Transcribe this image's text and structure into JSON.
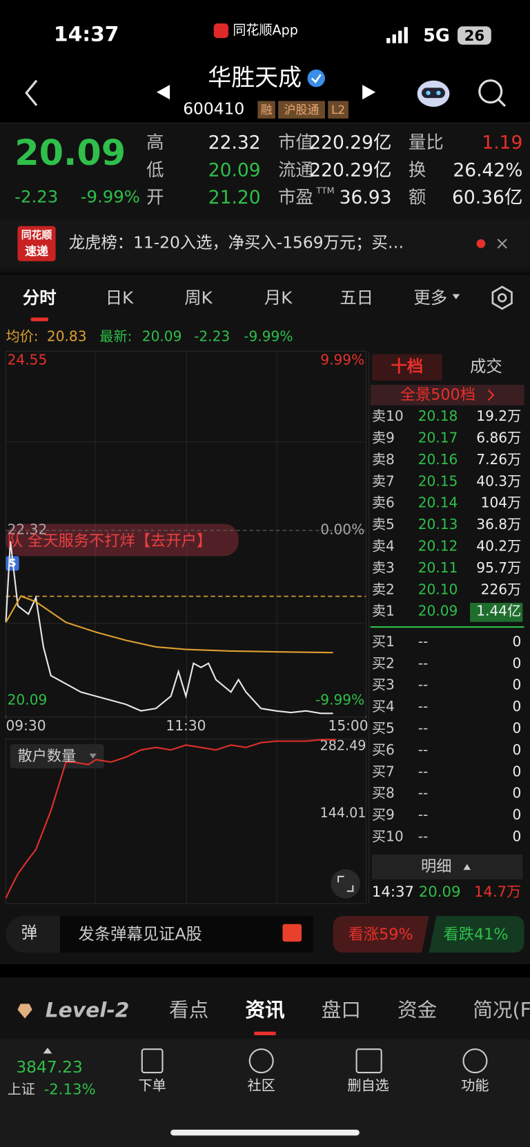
{
  "status": {
    "time": "14:37",
    "app": "同花顺App",
    "network": "5G",
    "battery": "26"
  },
  "header": {
    "name": "华胜天成",
    "code": "600410",
    "tags": [
      "融",
      "沪股通",
      "L2"
    ]
  },
  "quote": {
    "price": "20.09",
    "change": "-2.23",
    "change_pct": "-9.99%",
    "stats": [
      [
        {
          "label": "高",
          "value": "22.32"
        },
        {
          "label": "市值",
          "value": "220.29亿"
        },
        {
          "label": "量比",
          "value": "1.19"
        }
      ],
      [
        {
          "label": "低",
          "value": "20.09"
        },
        {
          "label": "流通",
          "value": "220.29亿"
        },
        {
          "label": "换",
          "value": "26.42%"
        }
      ],
      [
        {
          "label": "开",
          "value": "21.20"
        },
        {
          "label": "市盈",
          "sup": "TTM",
          "value": "36.93"
        },
        {
          "label": "额",
          "value": "60.36亿"
        }
      ]
    ]
  },
  "news": {
    "badge": [
      "同花顺",
      "速递"
    ],
    "text": "龙虎榜：11-20入选，净买入-1569万元；买…"
  },
  "tabs": {
    "items": [
      "分时",
      "日K",
      "周K",
      "月K",
      "五日",
      "更多"
    ],
    "active": 0
  },
  "info": {
    "avg_label": "均价:",
    "avg": "20.83",
    "last_label": "最新:",
    "last": "20.09",
    "change": "-2.23",
    "change_pct": "-9.99%"
  },
  "ad": "队  全天服务不打烊【去开户】",
  "marker": "S",
  "chart_data": [
    {
      "type": "line",
      "xlim": [
        0,
        240
      ],
      "ylim": [
        20.09,
        24.55
      ],
      "yticks": [
        24.55,
        22.32,
        20.09
      ],
      "y2lim": [
        -9.99,
        9.99
      ],
      "y2ticks": [
        {
          "value": 9.99,
          "label": "9.99%"
        },
        {
          "value": 0,
          "label": "0.00%"
        },
        {
          "value": -9.99,
          "label": "-9.99%"
        }
      ],
      "xticks": [
        {
          "value": 0,
          "label": "09:30"
        },
        {
          "value": 120,
          "label": "11:30"
        },
        {
          "value": 240,
          "label": "15:00"
        }
      ],
      "series": [
        {
          "color": "#e8e8e8",
          "x": [
            0,
            3,
            8,
            15,
            20,
            25,
            30,
            40,
            50,
            60,
            70,
            80,
            90,
            100,
            110,
            115,
            120,
            125,
            130,
            135,
            140,
            150,
            155,
            160,
            170,
            180,
            190,
            200,
            210,
            218
          ],
          "values": [
            21.2,
            22.19,
            21.4,
            21.3,
            21.5,
            20.9,
            20.55,
            20.45,
            20.35,
            20.3,
            20.25,
            20.2,
            20.12,
            20.15,
            20.3,
            20.6,
            20.3,
            20.7,
            20.65,
            20.7,
            20.5,
            20.35,
            20.5,
            20.35,
            20.15,
            20.12,
            20.1,
            20.12,
            20.09,
            20.09
          ]
        },
        {
          "color": "#e0a030",
          "x": [
            0,
            10,
            20,
            40,
            60,
            80,
            100,
            120,
            150,
            180,
            218
          ],
          "values": [
            21.2,
            21.52,
            21.45,
            21.2,
            21.08,
            20.98,
            20.9,
            20.87,
            20.85,
            20.84,
            20.83
          ]
        }
      ]
    },
    {
      "type": "line",
      "title": "散户数量",
      "xlim": [
        0,
        240
      ],
      "ylim": [
        -41,
        297.5
      ],
      "yticks": [
        282.49,
        144.01
      ],
      "series": [
        {
          "color": "#e0302a",
          "x": [
            0,
            3,
            8,
            15,
            20,
            25,
            30,
            35,
            40,
            45,
            55,
            60,
            70,
            80,
            90,
            100,
            110,
            120,
            130,
            140,
            150,
            160,
            170,
            180,
            200,
            210,
            220
          ],
          "values": [
            -30,
            -10,
            20,
            50,
            70,
            110,
            150,
            200,
            250,
            250,
            245,
            255,
            250,
            260,
            275,
            280,
            275,
            285,
            280,
            275,
            285,
            280,
            290,
            293,
            293,
            296,
            296
          ]
        }
      ]
    }
  ],
  "order_book": {
    "tabs": [
      "十档",
      "成交"
    ],
    "panorama": "全景500档",
    "sells": [
      {
        "label": "卖10",
        "price": "20.18",
        "volume": "19.2万"
      },
      {
        "label": "卖9",
        "price": "20.17",
        "volume": "6.86万"
      },
      {
        "label": "卖8",
        "price": "20.16",
        "volume": "7.26万"
      },
      {
        "label": "卖7",
        "price": "20.15",
        "volume": "40.3万"
      },
      {
        "label": "卖6",
        "price": "20.14",
        "volume": "104万"
      },
      {
        "label": "卖5",
        "price": "20.13",
        "volume": "36.8万"
      },
      {
        "label": "卖4",
        "price": "20.12",
        "volume": "40.2万"
      },
      {
        "label": "卖3",
        "price": "20.11",
        "volume": "95.7万"
      },
      {
        "label": "卖2",
        "price": "20.10",
        "volume": "226万"
      },
      {
        "label": "卖1",
        "price": "20.09",
        "volume": "1.44亿"
      }
    ],
    "buys": [
      {
        "label": "买1",
        "price": "--",
        "volume": "0"
      },
      {
        "label": "买2",
        "price": "--",
        "volume": "0"
      },
      {
        "label": "买3",
        "price": "--",
        "volume": "0"
      },
      {
        "label": "买4",
        "price": "--",
        "volume": "0"
      },
      {
        "label": "买5",
        "price": "--",
        "volume": "0"
      },
      {
        "label": "买6",
        "price": "--",
        "volume": "0"
      },
      {
        "label": "买7",
        "price": "--",
        "volume": "0"
      },
      {
        "label": "买8",
        "price": "--",
        "volume": "0"
      },
      {
        "label": "买9",
        "price": "--",
        "volume": "0"
      },
      {
        "label": "买10",
        "price": "--",
        "volume": "0"
      }
    ],
    "detail": "明细",
    "trade": {
      "time": "14:37",
      "price": "20.09",
      "volume": "14.7万"
    }
  },
  "danmu": {
    "icon": "弹",
    "placeholder": "发条弹幕见证A股",
    "up": "看涨59%",
    "down": "看跌41%"
  },
  "nav": {
    "items": [
      "Level-2",
      "看点",
      "资讯",
      "盘口",
      "资金",
      "简况(F"
    ],
    "active": 2
  },
  "bottom": {
    "index_value": "3847.23",
    "index_name": "上证",
    "index_change": "-2.13%",
    "actions": [
      "下单",
      "社区",
      "删自选",
      "功能"
    ]
  }
}
